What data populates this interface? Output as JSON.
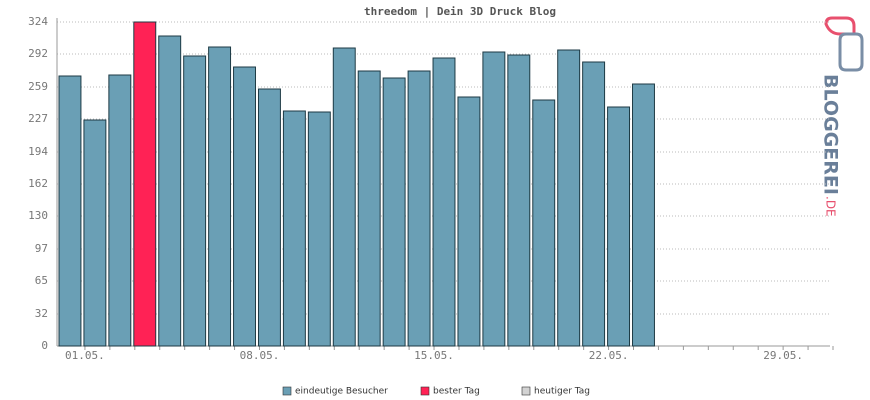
{
  "chart_data": {
    "type": "bar",
    "title": "threedom | Dein 3D Druck Blog",
    "categories": [
      "01.05.",
      null,
      null,
      null,
      null,
      null,
      null,
      "08.05.",
      null,
      null,
      null,
      null,
      null,
      null,
      "15.05.",
      null,
      null,
      null,
      null,
      null,
      null,
      "22.05.",
      null,
      null,
      null,
      null,
      null,
      null,
      "29.05.",
      null,
      null
    ],
    "series": [
      {
        "name": "eindeutige Besucher",
        "color": "#6a9fb5",
        "values": [
          270,
          226,
          271,
          324,
          310,
          290,
          299,
          279,
          257,
          235,
          234,
          298,
          275,
          268,
          275,
          288,
          249,
          294,
          291,
          246,
          296,
          284,
          239,
          262,
          0,
          0,
          0,
          0,
          0,
          0,
          0
        ]
      }
    ],
    "bar_colors": [
      "#6a9fb5",
      "#6a9fb5",
      "#6a9fb5",
      "#ff2255",
      "#6a9fb5",
      "#6a9fb5",
      "#6a9fb5",
      "#6a9fb5",
      "#6a9fb5",
      "#6a9fb5",
      "#6a9fb5",
      "#6a9fb5",
      "#6a9fb5",
      "#6a9fb5",
      "#6a9fb5",
      "#6a9fb5",
      "#6a9fb5",
      "#6a9fb5",
      "#6a9fb5",
      "#6a9fb5",
      "#6a9fb5",
      "#6a9fb5",
      "#6a9fb5",
      "#6a9fb5",
      "#d3d3d3",
      "#d3d3d3",
      "#d3d3d3",
      "#d3d3d3",
      "#d3d3d3",
      "#d3d3d3",
      "#d3d3d3"
    ],
    "legend": [
      {
        "name": "eindeutige Besucher",
        "color": "#6a9fb5"
      },
      {
        "name": "bester Tag",
        "color": "#ff2255"
      },
      {
        "name": "heutiger Tag",
        "color": "#d3d3d3"
      }
    ],
    "ylim": [
      0,
      324
    ],
    "yticks": [
      0,
      32,
      65,
      97,
      130,
      162,
      194,
      227,
      259,
      292,
      324
    ],
    "grid": true
  },
  "logo": {
    "name": "BLOGGEREI",
    "suffix": ".DE"
  }
}
